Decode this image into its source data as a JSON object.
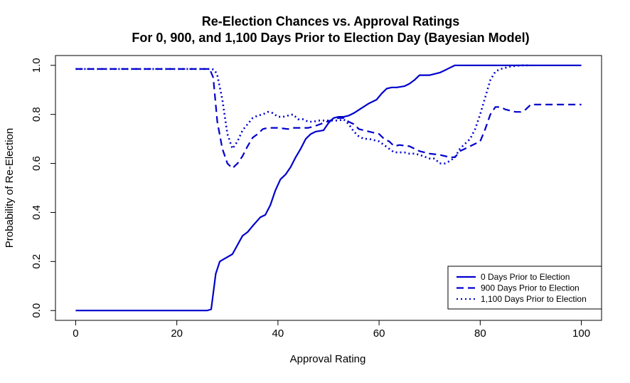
{
  "chart_data": {
    "type": "line",
    "title": "Re-Election Chances vs. Approval Ratings",
    "subtitle": "For 0, 900, and 1,100 Days Prior to Election Day (Bayesian Model)",
    "xlabel": "Approval Rating",
    "ylabel": "Probability of Re-Election",
    "xlim": [
      -4,
      104
    ],
    "ylim": [
      -0.04,
      1.04
    ],
    "xticks": [
      0,
      20,
      40,
      60,
      80,
      100
    ],
    "yticks": [
      0.0,
      0.2,
      0.4,
      0.6,
      0.8,
      1.0
    ],
    "xtick_labels": [
      "0",
      "20",
      "40",
      "60",
      "80",
      "100"
    ],
    "ytick_labels": [
      "0.0",
      "0.2",
      "0.4",
      "0.6",
      "0.8",
      "1.0"
    ],
    "grid": false,
    "legend_position": "bottom-right",
    "series_color": "#0000cd",
    "series": [
      {
        "name": "0 Days Prior to Election",
        "style": "solid",
        "x": [
          0,
          26,
          26.8,
          27.7,
          28.5,
          29.3,
          31,
          33,
          34,
          35,
          36.5,
          37.5,
          38.5,
          39.5,
          40.5,
          41.5,
          42.5,
          43.5,
          44.5,
          45.5,
          46.5,
          47.5,
          49,
          50,
          51,
          52,
          53,
          54,
          55,
          56.5,
          58,
          59.5,
          60.5,
          61.5,
          62.5,
          63.5,
          65,
          66,
          67,
          68,
          70,
          71,
          72,
          73,
          74,
          75,
          76,
          77,
          80,
          85,
          90,
          95,
          100
        ],
        "y": [
          0,
          0,
          0.005,
          0.15,
          0.2,
          0.21,
          0.23,
          0.305,
          0.32,
          0.345,
          0.38,
          0.39,
          0.43,
          0.49,
          0.535,
          0.555,
          0.585,
          0.625,
          0.66,
          0.7,
          0.72,
          0.73,
          0.735,
          0.765,
          0.785,
          0.79,
          0.79,
          0.795,
          0.805,
          0.825,
          0.845,
          0.86,
          0.885,
          0.905,
          0.91,
          0.91,
          0.915,
          0.925,
          0.94,
          0.96,
          0.96,
          0.965,
          0.97,
          0.98,
          0.99,
          1.0,
          1.0,
          1.0,
          1.0,
          1.0,
          1.0,
          1.0,
          1.0
        ]
      },
      {
        "name": "900 Days Prior to Election",
        "style": "dashed",
        "x": [
          0,
          26.5,
          27.2,
          28,
          29,
          30,
          31,
          32,
          33,
          34,
          35,
          36,
          37,
          38,
          40,
          42,
          43,
          44,
          46,
          47,
          49,
          51,
          52,
          53,
          54,
          55,
          56,
          57,
          58,
          60,
          61,
          62,
          63,
          64,
          66,
          67,
          68,
          70,
          72,
          74,
          75,
          76,
          78,
          80,
          81,
          82,
          83,
          84,
          85,
          87,
          88,
          89,
          90,
          95,
          100
        ],
        "y": [
          0.985,
          0.985,
          0.95,
          0.77,
          0.66,
          0.6,
          0.58,
          0.6,
          0.63,
          0.67,
          0.705,
          0.72,
          0.74,
          0.745,
          0.745,
          0.74,
          0.745,
          0.745,
          0.745,
          0.75,
          0.765,
          0.78,
          0.785,
          0.785,
          0.77,
          0.76,
          0.74,
          0.735,
          0.73,
          0.72,
          0.7,
          0.69,
          0.67,
          0.675,
          0.67,
          0.66,
          0.65,
          0.64,
          0.635,
          0.625,
          0.625,
          0.65,
          0.67,
          0.69,
          0.74,
          0.8,
          0.83,
          0.83,
          0.82,
          0.81,
          0.81,
          0.82,
          0.84,
          0.84,
          0.84
        ]
      },
      {
        "name": "1,100 Days Prior to Election",
        "style": "dotted",
        "x": [
          0,
          27,
          27.5,
          28,
          29,
          30,
          31,
          32,
          33,
          34,
          35,
          36,
          37,
          38,
          39,
          40,
          41,
          42,
          43,
          44,
          45,
          46,
          47,
          48,
          50,
          51,
          52,
          53,
          54,
          55,
          56,
          57,
          58,
          60,
          61,
          62,
          63,
          64,
          65,
          66,
          67,
          68,
          70,
          71,
          72,
          73,
          74,
          75,
          76,
          77,
          78,
          79,
          80,
          81,
          82,
          83,
          84,
          85,
          86,
          88,
          90
        ],
        "y": [
          0.985,
          0.985,
          0.98,
          0.96,
          0.86,
          0.72,
          0.66,
          0.69,
          0.735,
          0.76,
          0.785,
          0.795,
          0.8,
          0.81,
          0.805,
          0.79,
          0.79,
          0.795,
          0.8,
          0.78,
          0.78,
          0.77,
          0.77,
          0.775,
          0.775,
          0.775,
          0.775,
          0.78,
          0.76,
          0.73,
          0.71,
          0.7,
          0.7,
          0.69,
          0.675,
          0.66,
          0.645,
          0.645,
          0.645,
          0.64,
          0.64,
          0.635,
          0.62,
          0.62,
          0.6,
          0.6,
          0.61,
          0.625,
          0.66,
          0.68,
          0.7,
          0.74,
          0.8,
          0.87,
          0.94,
          0.975,
          0.985,
          0.99,
          0.995,
          1.0,
          1.0
        ]
      }
    ]
  }
}
